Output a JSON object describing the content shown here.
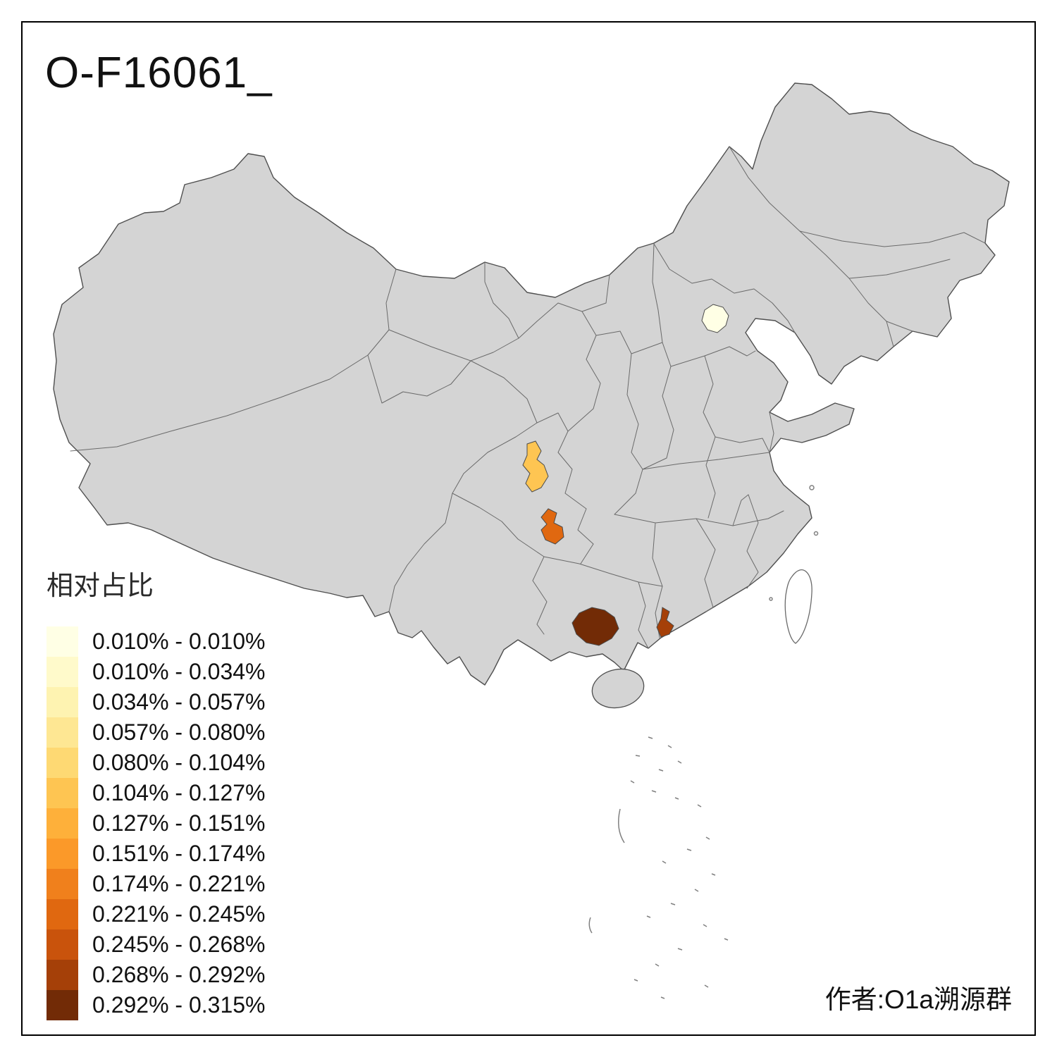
{
  "title": "O-F16061_",
  "attribution": "作者:O1a溯源群",
  "legend": {
    "title": "相对占比",
    "items": [
      {
        "color": "#FFFFE5",
        "label": "0.010% - 0.010%"
      },
      {
        "color": "#FFFACB",
        "label": "0.010% - 0.034%"
      },
      {
        "color": "#FEF3B1",
        "label": "0.034% - 0.057%"
      },
      {
        "color": "#FEE793",
        "label": "0.057% - 0.080%"
      },
      {
        "color": "#FED973",
        "label": "0.080% - 0.104%"
      },
      {
        "color": "#FEC552",
        "label": "0.104% - 0.127%"
      },
      {
        "color": "#FEB03A",
        "label": "0.127% - 0.151%"
      },
      {
        "color": "#FB9929",
        "label": "0.151% - 0.174%"
      },
      {
        "color": "#F0801C",
        "label": "0.174% - 0.221%"
      },
      {
        "color": "#E06810",
        "label": "0.221% - 0.245%"
      },
      {
        "color": "#C9530C",
        "label": "0.245% - 0.268%"
      },
      {
        "color": "#A54008",
        "label": "0.268% - 0.292%"
      },
      {
        "color": "#722B06",
        "label": "0.292% - 0.315%"
      }
    ]
  },
  "map": {
    "base_fill": "#D4D4D4",
    "boundary_color": "#5B5B5B",
    "highlighted_regions": [
      {
        "name": "beijing-area",
        "color": "#FFFFE5"
      },
      {
        "name": "central-sichuan-area",
        "color": "#FEC552"
      },
      {
        "name": "chongqing-area",
        "color": "#E06810"
      },
      {
        "name": "southeast-yunnan-area",
        "color": "#722B06"
      },
      {
        "name": "western-guangdong-area",
        "color": "#A54008"
      }
    ]
  }
}
